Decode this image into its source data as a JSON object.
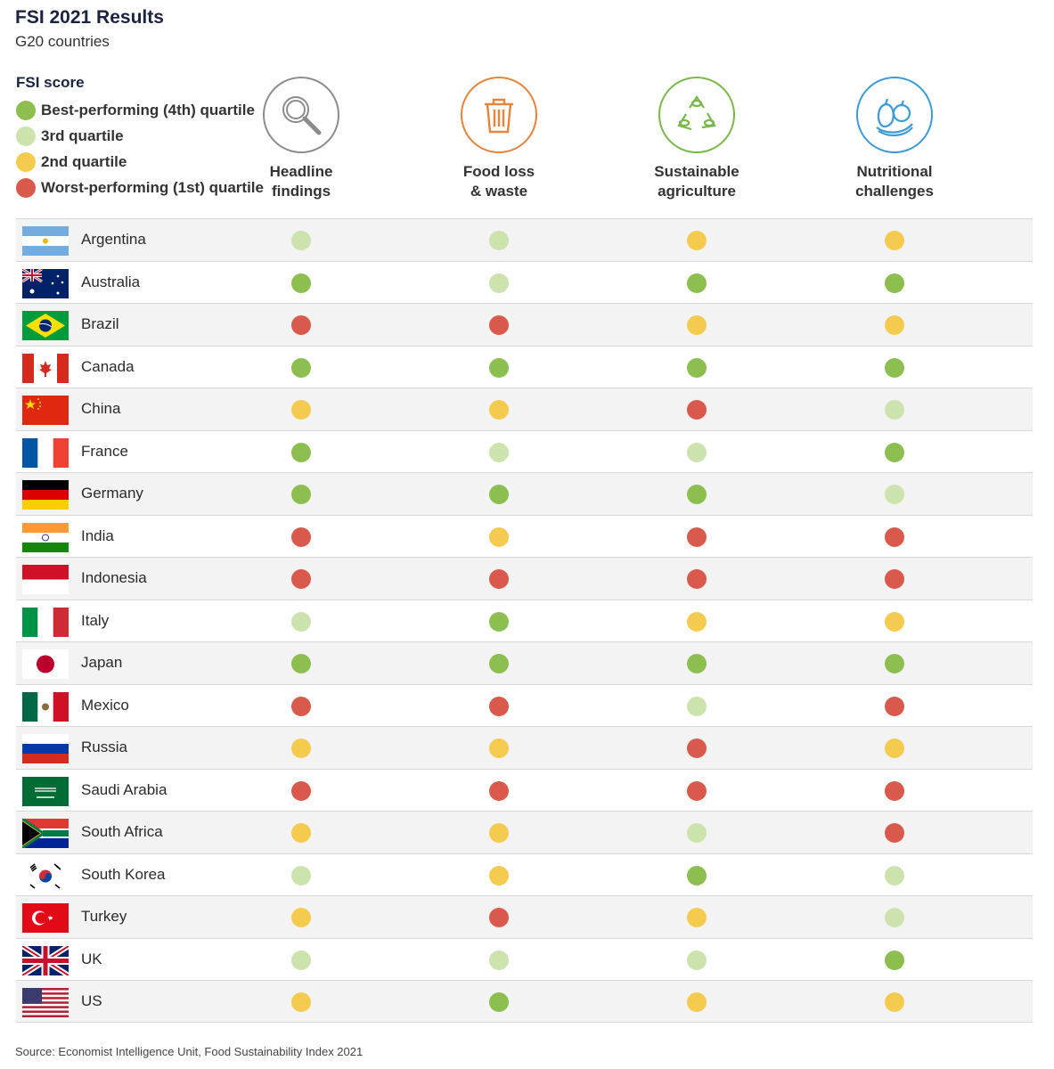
{
  "title": "FSI 2021 Results",
  "subtitle": "G20 countries",
  "legend": {
    "title": "FSI score",
    "items": [
      {
        "label": "Best-performing (4th) quartile",
        "level": 4
      },
      {
        "label": "3rd quartile",
        "level": 3
      },
      {
        "label": "2nd quartile",
        "level": 2
      },
      {
        "label": "Worst-performing (1st) quartile",
        "level": 1
      }
    ]
  },
  "colors": {
    "q4": "#8cbf4f",
    "q3": "#cde3ad",
    "q2": "#f5cb4f",
    "q1": "#d9594c"
  },
  "columns": [
    {
      "line1": "Headline",
      "line2": "findings",
      "icon": "magnifier-icon",
      "ring": "#8c8c8c"
    },
    {
      "line1": "Food loss",
      "line2": "& waste",
      "icon": "trash-can-icon",
      "ring": "#e8833a"
    },
    {
      "line1": "Sustainable",
      "line2": "agriculture",
      "icon": "recycle-icon",
      "ring": "#79b84a"
    },
    {
      "line1": "Nutritional",
      "line2": "challenges",
      "icon": "fruit-icon",
      "ring": "#3d9ad8"
    }
  ],
  "chart_data": {
    "type": "table",
    "columns": [
      "Headline findings",
      "Food loss & waste",
      "Sustainable agriculture",
      "Nutritional challenges"
    ],
    "rows": [
      {
        "country": "Argentina",
        "flag": "argentina",
        "scores": [
          3,
          3,
          2,
          2
        ]
      },
      {
        "country": "Australia",
        "flag": "australia",
        "scores": [
          4,
          3,
          4,
          4
        ]
      },
      {
        "country": "Brazil",
        "flag": "brazil",
        "scores": [
          1,
          1,
          2,
          2
        ]
      },
      {
        "country": "Canada",
        "flag": "canada",
        "scores": [
          4,
          4,
          4,
          4
        ]
      },
      {
        "country": "China",
        "flag": "china",
        "scores": [
          2,
          2,
          1,
          3
        ]
      },
      {
        "country": "France",
        "flag": "france",
        "scores": [
          4,
          3,
          3,
          4
        ]
      },
      {
        "country": "Germany",
        "flag": "germany",
        "scores": [
          4,
          4,
          4,
          3
        ]
      },
      {
        "country": "India",
        "flag": "india",
        "scores": [
          1,
          2,
          1,
          1
        ]
      },
      {
        "country": "Indonesia",
        "flag": "indonesia",
        "scores": [
          1,
          1,
          1,
          1
        ]
      },
      {
        "country": "Italy",
        "flag": "italy",
        "scores": [
          3,
          4,
          2,
          2
        ]
      },
      {
        "country": "Japan",
        "flag": "japan",
        "scores": [
          4,
          4,
          4,
          4
        ]
      },
      {
        "country": "Mexico",
        "flag": "mexico",
        "scores": [
          1,
          1,
          3,
          1
        ]
      },
      {
        "country": "Russia",
        "flag": "russia",
        "scores": [
          2,
          2,
          1,
          2
        ]
      },
      {
        "country": "Saudi Arabia",
        "flag": "saudi",
        "scores": [
          1,
          1,
          1,
          1
        ]
      },
      {
        "country": "South Africa",
        "flag": "southafrica",
        "scores": [
          2,
          2,
          3,
          1
        ]
      },
      {
        "country": "South Korea",
        "flag": "southkorea",
        "scores": [
          3,
          2,
          4,
          3
        ]
      },
      {
        "country": "Turkey",
        "flag": "turkey",
        "scores": [
          2,
          1,
          2,
          3
        ]
      },
      {
        "country": "UK",
        "flag": "uk",
        "scores": [
          3,
          3,
          3,
          4
        ]
      },
      {
        "country": "US",
        "flag": "us",
        "scores": [
          2,
          4,
          2,
          2
        ]
      }
    ]
  },
  "source": "Source: Economist Intelligence Unit, Food Sustainability Index 2021"
}
